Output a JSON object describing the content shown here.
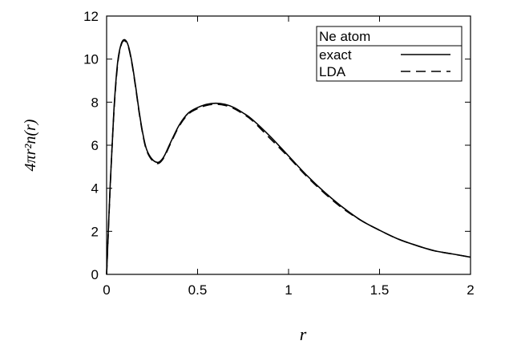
{
  "chart_data": {
    "type": "line",
    "title": "",
    "xlabel": "r",
    "ylabel": "4πr²n(r)",
    "xlim": [
      0,
      2
    ],
    "ylim": [
      0,
      12
    ],
    "x_ticks": [
      "0",
      "0.5",
      "1",
      "1.5",
      "2"
    ],
    "y_ticks": [
      "0",
      "2",
      "4",
      "6",
      "8",
      "10",
      "12"
    ],
    "grid": false,
    "legend_title": "Ne atom",
    "legend_position": "top-right",
    "series": [
      {
        "name": "exact",
        "style": "solid",
        "color": "#000000",
        "x": [
          0,
          0.02,
          0.04,
          0.06,
          0.08,
          0.1,
          0.12,
          0.14,
          0.16,
          0.18,
          0.2,
          0.22,
          0.25,
          0.28,
          0.3,
          0.32,
          0.35,
          0.4,
          0.45,
          0.5,
          0.55,
          0.6,
          0.65,
          0.7,
          0.75,
          0.8,
          0.9,
          1.0,
          1.1,
          1.2,
          1.3,
          1.4,
          1.5,
          1.6,
          1.7,
          1.8,
          1.9,
          2.0
        ],
        "y": [
          0,
          4.2,
          7.6,
          9.8,
          10.7,
          10.9,
          10.6,
          9.8,
          8.7,
          7.5,
          6.5,
          5.8,
          5.35,
          5.2,
          5.3,
          5.55,
          6.1,
          6.95,
          7.5,
          7.75,
          7.9,
          7.95,
          7.9,
          7.75,
          7.5,
          7.2,
          6.4,
          5.5,
          4.6,
          3.8,
          3.1,
          2.5,
          2.05,
          1.65,
          1.35,
          1.1,
          0.95,
          0.8
        ]
      },
      {
        "name": "LDA",
        "style": "dashed",
        "color": "#000000",
        "x": [
          0,
          0.02,
          0.04,
          0.06,
          0.08,
          0.1,
          0.12,
          0.14,
          0.16,
          0.18,
          0.2,
          0.22,
          0.25,
          0.28,
          0.3,
          0.32,
          0.35,
          0.4,
          0.45,
          0.5,
          0.55,
          0.6,
          0.65,
          0.7,
          0.75,
          0.8,
          0.9,
          1.0,
          1.1,
          1.2,
          1.3,
          1.4,
          1.5,
          1.6,
          1.7,
          1.8,
          1.9,
          2.0
        ],
        "y": [
          0,
          4.1,
          7.5,
          9.7,
          10.65,
          10.85,
          10.55,
          9.75,
          8.65,
          7.45,
          6.45,
          5.75,
          5.3,
          5.15,
          5.25,
          5.5,
          6.05,
          6.9,
          7.45,
          7.7,
          7.85,
          7.9,
          7.85,
          7.7,
          7.45,
          7.15,
          6.3,
          5.45,
          4.55,
          3.75,
          3.05,
          2.5,
          2.05,
          1.65,
          1.35,
          1.1,
          0.95,
          0.8
        ]
      }
    ]
  }
}
